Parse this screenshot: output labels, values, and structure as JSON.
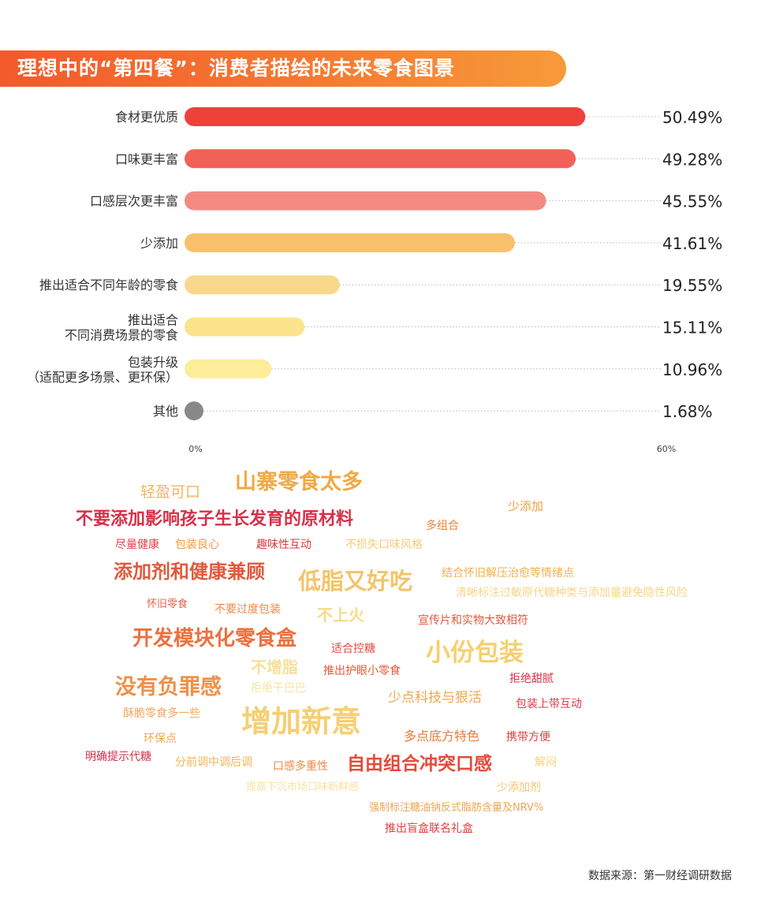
{
  "title": "理想中的“第四餐”：消费者描绘的未来零食图景",
  "chart_data": {
    "type": "bar",
    "orientation": "horizontal",
    "categories": [
      [
        "食材更优质"
      ],
      [
        "口味更丰富"
      ],
      [
        "口感层次更丰富"
      ],
      [
        "少添加"
      ],
      [
        "推出适合不同年龄的零食"
      ],
      [
        "推出适合",
        "不同消费场景的零食"
      ],
      [
        "包装升级",
        "（适配更多场景、更环保）"
      ],
      [
        "其他"
      ]
    ],
    "values": [
      50.49,
      49.28,
      45.55,
      41.61,
      19.55,
      15.11,
      10.96,
      1.68
    ],
    "value_labels": [
      "50.49%",
      "49.28%",
      "45.55%",
      "41.61%",
      "19.55%",
      "15.11%",
      "10.96%",
      "1.68%"
    ],
    "bar_colors": [
      "#f0403a",
      "#f26158",
      "#f48a82",
      "#f8c06a",
      "#f9d88c",
      "#fbe48c",
      "#fced98",
      "#888888"
    ],
    "xlim": [
      0,
      60
    ],
    "x_tick_labels": [
      "0%",
      "60%"
    ]
  },
  "word_cloud": [
    {
      "text": "山寨零食太多",
      "color": "#f0a946"
    },
    {
      "text": "轻盈可口",
      "color": "#f0b860"
    },
    {
      "text": "少添加",
      "color": "#f0a040"
    },
    {
      "text": "不要添加影响孩子生长发育的原材料",
      "color": "#d83048"
    },
    {
      "text": "多组合",
      "color": "#e8843a"
    },
    {
      "text": "尽量健康",
      "color": "#e04048"
    },
    {
      "text": "包装良心",
      "color": "#ef9a4a"
    },
    {
      "text": "趣味性互动",
      "color": "#e03a3c"
    },
    {
      "text": "不损失口味风格",
      "color": "#f3cd78"
    },
    {
      "text": "添加剂和健康兼顾",
      "color": "#e05a3c"
    },
    {
      "text": "低脂又好吃",
      "color": "#f3c46a"
    },
    {
      "text": "结合怀旧解压治愈等情绪点",
      "color": "#f0b050"
    },
    {
      "text": "清晰标注过敏原代糖种类与添加量避免隐性风险",
      "color": "#f5d58a"
    },
    {
      "text": "怀旧零食",
      "color": "#e8604a"
    },
    {
      "text": "不要过度包装",
      "color": "#f08a4a"
    },
    {
      "text": "不上火",
      "color": "#f5dc86"
    },
    {
      "text": "宣传片和实物大致相符",
      "color": "#e25a40"
    },
    {
      "text": "开发模块化零食盒",
      "color": "#ec7040"
    },
    {
      "text": "适合控糖",
      "color": "#e24a40"
    },
    {
      "text": "小份包装",
      "color": "#f5d070"
    },
    {
      "text": "不增脂",
      "color": "#f7e09c"
    },
    {
      "text": "推出护眼小零食",
      "color": "#e85838"
    },
    {
      "text": "拒绝甜腻",
      "color": "#e03048"
    },
    {
      "text": "没有负罪感",
      "color": "#ef9048"
    },
    {
      "text": "拒绝干巴巴",
      "color": "#f7e4a0"
    },
    {
      "text": "少点科技与狠活",
      "color": "#f0a850"
    },
    {
      "text": "包装上带互动",
      "color": "#e03a48"
    },
    {
      "text": "酥脆零食多一些",
      "color": "#f0a860"
    },
    {
      "text": "增加新意",
      "color": "#f5cf72"
    },
    {
      "text": "多点底方特色",
      "color": "#ea7a3a"
    },
    {
      "text": "携带方便",
      "color": "#e03e3c"
    },
    {
      "text": "环保点",
      "color": "#f0a848"
    },
    {
      "text": "明确提示代糖",
      "color": "#d63048"
    },
    {
      "text": "分前调中调后调",
      "color": "#f3b458"
    },
    {
      "text": "口感多重性",
      "color": "#ef8a48"
    },
    {
      "text": "自由组合冲突口感",
      "color": "#e44a3a"
    },
    {
      "text": "解闷",
      "color": "#f5d480"
    },
    {
      "text": "提高下沉市场口味新鲜感",
      "color": "#f7e2a0"
    },
    {
      "text": "少添加剂",
      "color": "#f3c670"
    },
    {
      "text": "强制标注糖油钠反式脂肪含量及NRV%",
      "color": "#f0a650"
    },
    {
      "text": "推出盲盒联名礼盒",
      "color": "#e03e3e"
    }
  ],
  "source": "数据来源：第一财经调研数据"
}
